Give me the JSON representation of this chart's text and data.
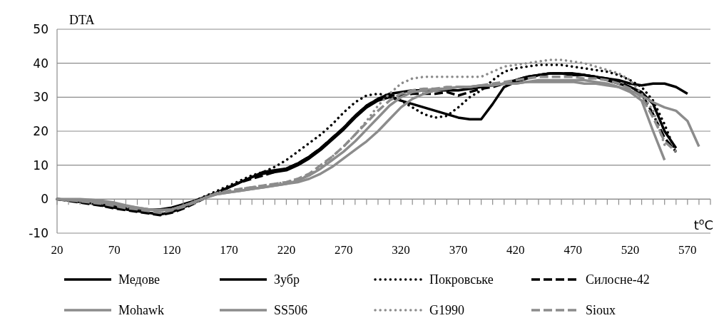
{
  "chart_data": {
    "type": "line",
    "ylabel": "DTA",
    "xlabel": "t$^{o}$C",
    "x": [
      20,
      30,
      40,
      50,
      60,
      70,
      80,
      90,
      100,
      110,
      120,
      130,
      140,
      150,
      160,
      170,
      180,
      190,
      200,
      210,
      220,
      230,
      240,
      250,
      260,
      270,
      280,
      290,
      300,
      310,
      320,
      330,
      340,
      350,
      360,
      370,
      380,
      390,
      400,
      410,
      420,
      430,
      440,
      450,
      460,
      470,
      480,
      490,
      500,
      510,
      520,
      530,
      540,
      550,
      560,
      570,
      580
    ],
    "xlim": [
      20,
      590
    ],
    "xticks": [
      20,
      {
        "value": 30,
        "label": null
      },
      {
        "value": 40,
        "label": null
      },
      {
        "value": 50,
        "label": null
      },
      {
        "value": 60,
        "label": null
      },
      70,
      {
        "value": 80,
        "label": null
      },
      {
        "value": 90,
        "label": null
      },
      {
        "value": 100,
        "label": null
      },
      {
        "value": 110,
        "label": null
      },
      120,
      {
        "value": 130,
        "label": null
      },
      {
        "value": 140,
        "label": null
      },
      {
        "value": 150,
        "label": null
      },
      {
        "value": 160,
        "label": null
      },
      170,
      {
        "value": 180,
        "label": null
      },
      {
        "value": 190,
        "label": null
      },
      {
        "value": 200,
        "label": null
      },
      {
        "value": 210,
        "label": null
      },
      220,
      {
        "value": 230,
        "label": null
      },
      {
        "value": 240,
        "label": null
      },
      {
        "value": 250,
        "label": null
      },
      {
        "value": 260,
        "label": null
      },
      270,
      {
        "value": 280,
        "label": null
      },
      {
        "value": 290,
        "label": null
      },
      {
        "value": 300,
        "label": null
      },
      {
        "value": 310,
        "label": null
      },
      320,
      {
        "value": 330,
        "label": null
      },
      {
        "value": 340,
        "label": null
      },
      {
        "value": 350,
        "label": null
      },
      {
        "value": 360,
        "label": null
      },
      370,
      {
        "value": 380,
        "label": null
      },
      {
        "value": 390,
        "label": null
      },
      {
        "value": 400,
        "label": null
      },
      {
        "value": 410,
        "label": null
      },
      420,
      {
        "value": 430,
        "label": null
      },
      {
        "value": 440,
        "label": null
      },
      {
        "value": 450,
        "label": null
      },
      {
        "value": 460,
        "label": null
      },
      470,
      {
        "value": 480,
        "label": null
      },
      {
        "value": 490,
        "label": null
      },
      {
        "value": 500,
        "label": null
      },
      {
        "value": 510,
        "label": null
      },
      520,
      {
        "value": 530,
        "label": null
      },
      {
        "value": 540,
        "label": null
      },
      {
        "value": 550,
        "label": null
      },
      {
        "value": 560,
        "label": null
      },
      570,
      {
        "value": 580,
        "label": null
      },
      {
        "value": 590,
        "label": null
      }
    ],
    "ylim": [
      -10,
      50
    ],
    "yticks": [
      -10,
      0,
      10,
      20,
      30,
      40,
      50
    ],
    "grid": "y",
    "legend": "bottom",
    "marker": "none",
    "series": [
      {
        "name": "Медове",
        "color": "#000000",
        "line_style": "solid",
        "values": [
          0,
          -0.3,
          -0.8,
          -1.2,
          -1.8,
          -2.5,
          -3,
          -3.5,
          -4,
          -4.5,
          -3.8,
          -2.5,
          -1,
          0.5,
          2,
          3.5,
          5,
          6.5,
          7.5,
          8,
          8.5,
          10,
          12,
          14.5,
          17.5,
          20.5,
          24,
          27,
          29,
          30,
          29,
          28,
          27,
          26,
          25,
          24,
          23.5,
          23.5,
          28,
          33,
          34.5,
          35.5,
          36.5,
          37,
          37,
          36.5,
          36.5,
          36,
          35,
          34,
          33,
          31.5,
          28,
          20,
          15,
          null,
          null
        ]
      },
      {
        "name": "Зубр",
        "color": "#000000",
        "line_style": "solid",
        "values": [
          0,
          -0.3,
          -0.5,
          -0.8,
          -1.2,
          -1.8,
          -2.3,
          -2.8,
          -3,
          -3,
          -2.5,
          -1.5,
          -0.5,
          0.8,
          2,
          3.5,
          5,
          6.5,
          8,
          8.5,
          9,
          10.5,
          12.5,
          15,
          18,
          21,
          24.5,
          27.5,
          29.5,
          31,
          31.5,
          32,
          32,
          32,
          32,
          32,
          32.5,
          33,
          33.5,
          34,
          35,
          36,
          36.5,
          37,
          37,
          37,
          36.5,
          36,
          35.5,
          35,
          34,
          33.5,
          34,
          34,
          33,
          31,
          null
        ]
      },
      {
        "name": "Покровське",
        "color": "#000000",
        "line_style": "dotted",
        "values": [
          0,
          -0.3,
          -0.8,
          -1.3,
          -2,
          -2.5,
          -3,
          -3.5,
          -4,
          -4.5,
          -3.5,
          -2,
          -0.5,
          1,
          2.5,
          4,
          5.5,
          7,
          8,
          9.5,
          11.5,
          14,
          16.5,
          19,
          22,
          25.5,
          28.5,
          30.5,
          31,
          30.5,
          29,
          27,
          25,
          24,
          24.5,
          27,
          30,
          32,
          35,
          37.5,
          38.5,
          39,
          39.5,
          39.5,
          39.5,
          39,
          38.5,
          38,
          37.5,
          36.5,
          35,
          33,
          29,
          22,
          13.5,
          null,
          null
        ]
      },
      {
        "name": "Силосне-42",
        "color": "#000000",
        "line_style": "dashed",
        "values": [
          0,
          -0.5,
          -1,
          -1.5,
          -2,
          -2.7,
          -3.2,
          -3.7,
          -4.2,
          -4.7,
          -4,
          -2.8,
          -1.2,
          0.5,
          2,
          3.5,
          5,
          6,
          7,
          8,
          9,
          10.5,
          12.5,
          15,
          18,
          21,
          24.5,
          27.5,
          29.5,
          30.5,
          30.5,
          31,
          31,
          31,
          31.5,
          30.5,
          31.5,
          32.5,
          33,
          34,
          35,
          36,
          36.5,
          37,
          37,
          37,
          36.5,
          36,
          35.5,
          34.5,
          33,
          31,
          25,
          18,
          14,
          null,
          null
        ]
      },
      {
        "name": "Mohawk",
        "color": "#8c8c8c",
        "line_style": "solid",
        "values": [
          0,
          0,
          0,
          -0.2,
          -0.5,
          -1,
          -1.8,
          -2.5,
          -3,
          -3.2,
          -3,
          -2,
          -0.8,
          0.5,
          1.5,
          2,
          2.5,
          3,
          3.5,
          4,
          4.5,
          5,
          6,
          7.5,
          9.5,
          12,
          14.5,
          17,
          20,
          23.5,
          27,
          29.5,
          31,
          32,
          32.5,
          33,
          33,
          33.5,
          33.5,
          34,
          34,
          34.5,
          34.5,
          34.5,
          34.5,
          34.5,
          34,
          34,
          33.5,
          33,
          32,
          30.5,
          28.5,
          27,
          26,
          23,
          15.5
        ]
      },
      {
        "name": "SS506",
        "color": "#8c8c8c",
        "line_style": "solid",
        "values": [
          0,
          -0.2,
          -0.4,
          -0.6,
          -1,
          -1.5,
          -2,
          -2.5,
          -3,
          -3.3,
          -3,
          -2,
          -0.8,
          0.5,
          1.5,
          2,
          2.5,
          3,
          3.5,
          4,
          4.5,
          5.5,
          7,
          9,
          11.5,
          14,
          17,
          20.5,
          24,
          27.5,
          30,
          31.5,
          32,
          32.5,
          32.5,
          33,
          33,
          33.5,
          33.5,
          34,
          34,
          34.5,
          35,
          35,
          35,
          35,
          35,
          34.5,
          34,
          33,
          31.5,
          29,
          20,
          11.5,
          null,
          null,
          null
        ]
      },
      {
        "name": "G1990",
        "color": "#8c8c8c",
        "line_style": "dotted",
        "values": [
          0,
          -0.2,
          -0.5,
          -0.8,
          -1.2,
          -1.7,
          -2.2,
          -2.7,
          -3,
          -3.5,
          -3,
          -2,
          -0.7,
          0.7,
          2,
          2.5,
          3,
          3.5,
          4,
          4.5,
          5,
          6,
          7,
          9.5,
          12.5,
          15.5,
          19,
          23,
          27.5,
          31,
          34,
          35.5,
          36,
          36,
          36,
          36,
          36,
          36,
          37.5,
          39,
          39.5,
          40,
          40.5,
          41,
          41,
          40.5,
          40,
          39,
          38,
          37,
          35,
          31,
          26,
          16,
          null,
          null,
          null
        ]
      },
      {
        "name": "Sioux",
        "color": "#8c8c8c",
        "line_style": "dashed",
        "values": [
          0,
          -0.3,
          -0.6,
          -1,
          -1.4,
          -2,
          -2.6,
          -3,
          -3.5,
          -4,
          -3.3,
          -2.3,
          -1,
          0.5,
          1.8,
          2.5,
          3,
          3.5,
          4,
          4.5,
          5,
          6,
          7.5,
          10,
          12.5,
          15.5,
          19,
          22.5,
          26,
          29,
          31,
          32,
          32.5,
          32.5,
          33,
          33,
          33,
          33.5,
          34,
          34.5,
          35,
          35.5,
          36,
          36,
          36,
          36,
          35.5,
          35.5,
          35,
          34,
          32.5,
          30,
          24,
          17,
          14,
          null,
          null
        ]
      }
    ]
  }
}
